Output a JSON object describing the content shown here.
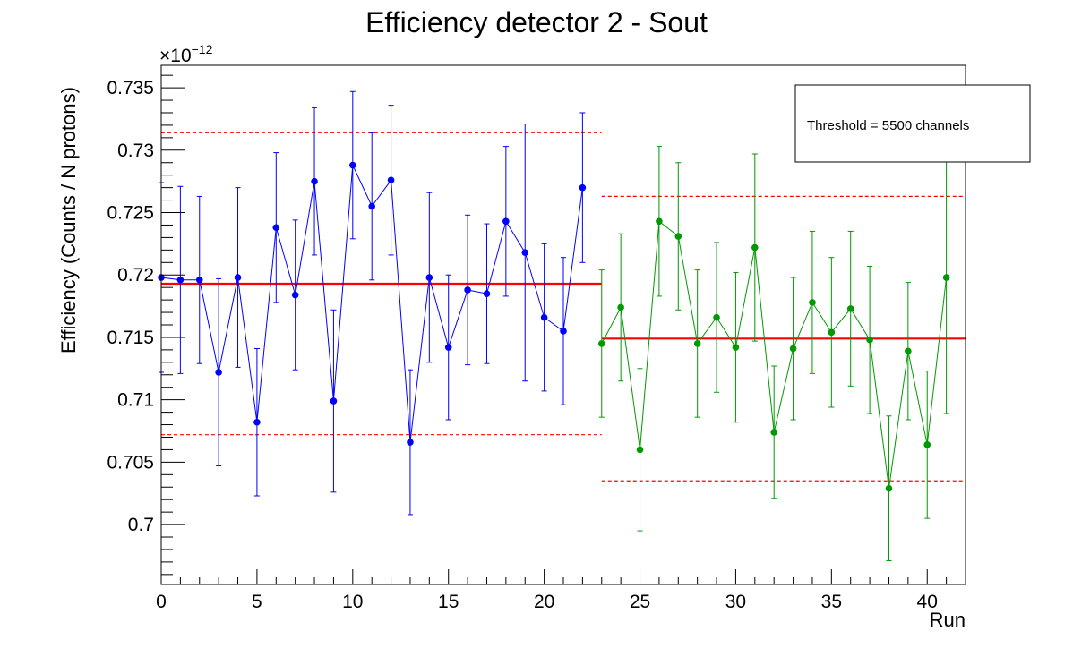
{
  "chart_data": {
    "type": "scatter",
    "title": "Efficiency detector 2 - Sout",
    "xlabel": "Run",
    "ylabel": "Efficiency (Counts / N protons)",
    "y_exponent_label": "×10",
    "y_exponent_power": "−12",
    "xlim": [
      0,
      42
    ],
    "ylim": [
      0.6952,
      0.7368
    ],
    "x_major_ticks": [
      0,
      5,
      10,
      15,
      20,
      25,
      30,
      35,
      40
    ],
    "x_tick_labels": [
      "0",
      "5",
      "10",
      "15",
      "20",
      "25",
      "30",
      "35",
      "40"
    ],
    "y_major_ticks": [
      0.7,
      0.705,
      0.71,
      0.715,
      0.72,
      0.725,
      0.73,
      0.735
    ],
    "y_tick_labels": [
      "0.7",
      "0.705",
      "0.71",
      "0.715",
      "0.72",
      "0.725",
      "0.73",
      "0.735"
    ],
    "grid": false,
    "series": [
      {
        "color": "#0000ff",
        "x": [
          0,
          1,
          2,
          3,
          4,
          5,
          6,
          7,
          8,
          9,
          10,
          11,
          12,
          13,
          14,
          15,
          16,
          17,
          18,
          19,
          20,
          21,
          22
        ],
        "y": [
          0.7198,
          0.7196,
          0.7196,
          0.7122,
          0.7198,
          0.7082,
          0.7238,
          0.7184,
          0.7275,
          0.7099,
          0.7288,
          0.7255,
          0.7276,
          0.7066,
          0.7198,
          0.7142,
          0.7188,
          0.7185,
          0.7243,
          0.7218,
          0.7166,
          0.7155,
          0.727
        ],
        "err": [
          0.0076,
          0.0075,
          0.0067,
          0.0075,
          0.0072,
          0.0059,
          0.006,
          0.006,
          0.0059,
          0.0073,
          0.0059,
          0.0059,
          0.006,
          0.0058,
          0.0068,
          0.0058,
          0.006,
          0.0056,
          0.006,
          0.0103,
          0.0059,
          0.0059,
          0.006
        ]
      },
      {
        "color": "#009900",
        "x": [
          23,
          24,
          25,
          26,
          27,
          28,
          29,
          30,
          31,
          32,
          33,
          34,
          35,
          36,
          37,
          38,
          39,
          40,
          41
        ],
        "y": [
          0.7145,
          0.7174,
          0.706,
          0.7243,
          0.7231,
          0.7145,
          0.7166,
          0.7142,
          0.7222,
          0.7074,
          0.7141,
          0.7178,
          0.7154,
          0.7173,
          0.7148,
          0.7029,
          0.7139,
          0.7064,
          0.7198
        ],
        "err": [
          0.0059,
          0.0059,
          0.0065,
          0.006,
          0.0059,
          0.0059,
          0.006,
          0.006,
          0.0075,
          0.0053,
          0.0057,
          0.0057,
          0.006,
          0.0062,
          0.0059,
          0.0058,
          0.0055,
          0.0059,
          0.0109
        ]
      }
    ],
    "mean_lines": [
      {
        "y": 0.7193,
        "x_from": 0,
        "x_to": 23,
        "color": "#ff0000"
      },
      {
        "y": 0.7149,
        "x_from": 23,
        "x_to": 42,
        "color": "#ff0000"
      }
    ],
    "band_lines": [
      {
        "y": 0.7314,
        "x_from": 0,
        "x_to": 23,
        "color": "#ff0000"
      },
      {
        "y": 0.7072,
        "x_from": 0,
        "x_to": 23,
        "color": "#ff0000"
      },
      {
        "y": 0.7263,
        "x_from": 23,
        "x_to": 42,
        "color": "#ff0000"
      },
      {
        "y": 0.7035,
        "x_from": 23,
        "x_to": 42,
        "color": "#ff0000"
      }
    ],
    "annotation": "Threshold = 5500 channels",
    "annotation_placement": "top-right"
  }
}
